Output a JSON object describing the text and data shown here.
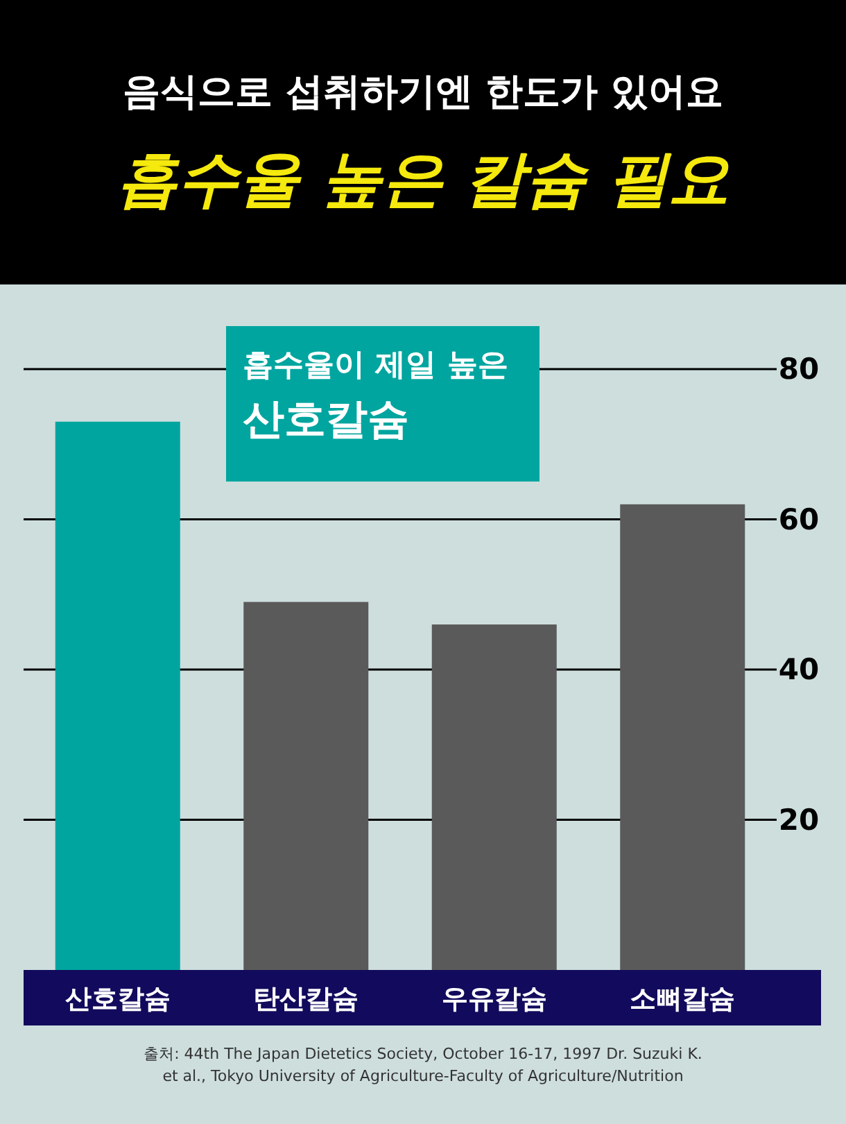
{
  "chart_data": {
    "type": "bar",
    "subtitle": "음식으로 섭취하기엔 한도가 있어요",
    "title": "흡수율 높은 칼슘 필요",
    "categories": [
      "산호칼슘",
      "탄산칼슘",
      "우유칼슘",
      "소뼈칼슘"
    ],
    "values": [
      73,
      49,
      46,
      62
    ],
    "colors": [
      "#00a59f",
      "#5a5a5a",
      "#5a5a5a",
      "#5a5a5a"
    ],
    "ylim": [
      0,
      80
    ],
    "yticks": [
      20,
      40,
      60,
      80
    ],
    "grid": "y",
    "annotations": [
      "흡수율이 제일 높은 산호칼슘",
      "출처: 44th The Japan Dietetics Society, October 16-17, 1997 Dr. Suzuki K. et al., Tokyo University of Agriculture-Faculty of Agriculture/Nutrition"
    ]
  }
}
